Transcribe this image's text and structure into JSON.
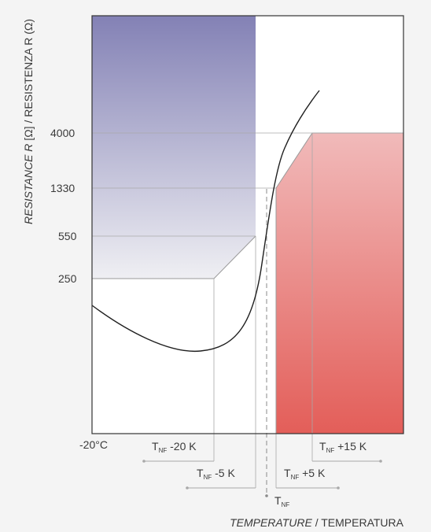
{
  "chart_data": {
    "type": "diagram",
    "y_ticks": [
      "4000",
      "1330",
      "550",
      "250"
    ],
    "x_start_label": "-20°C",
    "y_axis_title": {
      "italic": "RESISTANCE R",
      "unit1": " [Ω]",
      "rest": " / RESISTENZA R (Ω)"
    },
    "x_axis_title": {
      "italic": "TEMPERATURE",
      "rest": " / TEMPERATURA"
    },
    "markers": [
      {
        "main": "T",
        "sub": "NF",
        "offset": " -20 K"
      },
      {
        "main": "T",
        "sub": "NF",
        "offset": " -5 K"
      },
      {
        "main": "T",
        "sub": "NF",
        "offset": ""
      },
      {
        "main": "T",
        "sub": "NF",
        "offset": " +5 K"
      },
      {
        "main": "T",
        "sub": "NF",
        "offset": " +15 K"
      }
    ],
    "colors": {
      "blue_top": "#8381b5",
      "blue_bottom": "#efeff3",
      "red_top": "#f1baba",
      "red_bottom": "#e35e59",
      "frame": "#333333",
      "guide": "#999999"
    }
  }
}
